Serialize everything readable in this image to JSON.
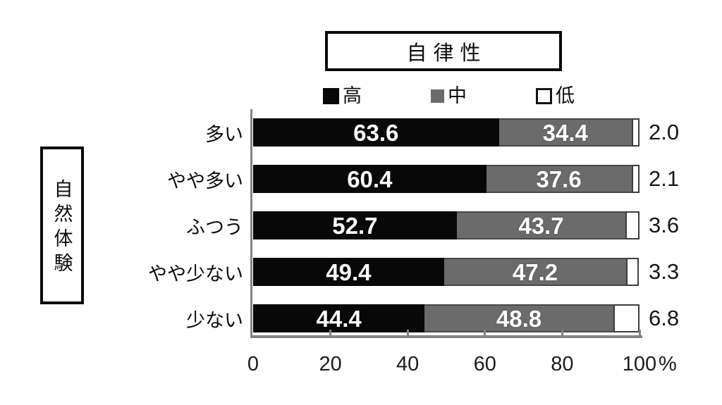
{
  "chart_data": {
    "type": "bar",
    "orientation": "horizontal",
    "stacked": true,
    "title": "自律性",
    "row_group_label": "自然体験",
    "categories": [
      "多い",
      "やや多い",
      "ふつう",
      "やや少ない",
      "少ない"
    ],
    "series": [
      {
        "name": "高",
        "color": "#080808",
        "values": [
          63.6,
          60.4,
          52.7,
          49.4,
          44.4
        ]
      },
      {
        "name": "中",
        "color": "#6b6b6b",
        "values": [
          34.4,
          37.6,
          43.7,
          47.2,
          48.8
        ]
      },
      {
        "name": "低",
        "color": "#ffffff",
        "values": [
          2.0,
          2.1,
          3.6,
          3.3,
          6.8
        ]
      }
    ],
    "xlim": [
      0,
      100
    ],
    "x_ticks": [
      0,
      20,
      40,
      60,
      80,
      100
    ],
    "x_unit": "%",
    "value_label_decimals": 1,
    "low_value_label_position": "outside-right",
    "legend_position": "top",
    "grid": false,
    "axis_color": "#848484"
  }
}
